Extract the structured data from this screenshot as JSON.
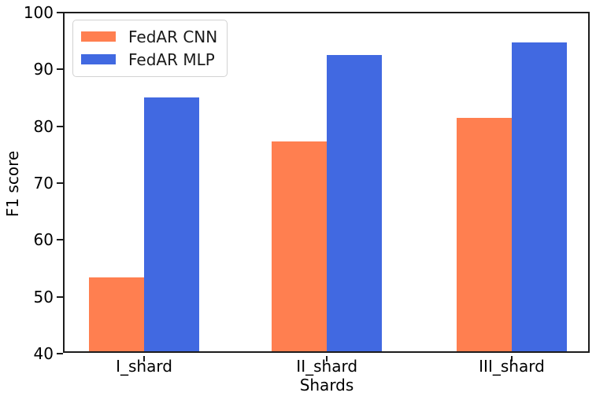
{
  "chart_data": {
    "type": "bar",
    "title": "",
    "xlabel": "Shards",
    "ylabel": "F1 score",
    "categories": [
      "I_shard",
      "II_shard",
      "III_shard"
    ],
    "series": [
      {
        "name": "FedAR CNN",
        "color": "#FF7F50",
        "values": [
          53.0,
          76.9,
          81.1
        ]
      },
      {
        "name": "FedAR MLP",
        "color": "#4169E1",
        "values": [
          84.7,
          92.1,
          94.4
        ]
      }
    ],
    "ylim": [
      40,
      100
    ],
    "yticks": [
      40,
      50,
      60,
      70,
      80,
      90,
      100
    ],
    "grid": false,
    "legend_position": "upper left",
    "axis_color": "#1c1c1c",
    "background_color": "#ffffff"
  }
}
